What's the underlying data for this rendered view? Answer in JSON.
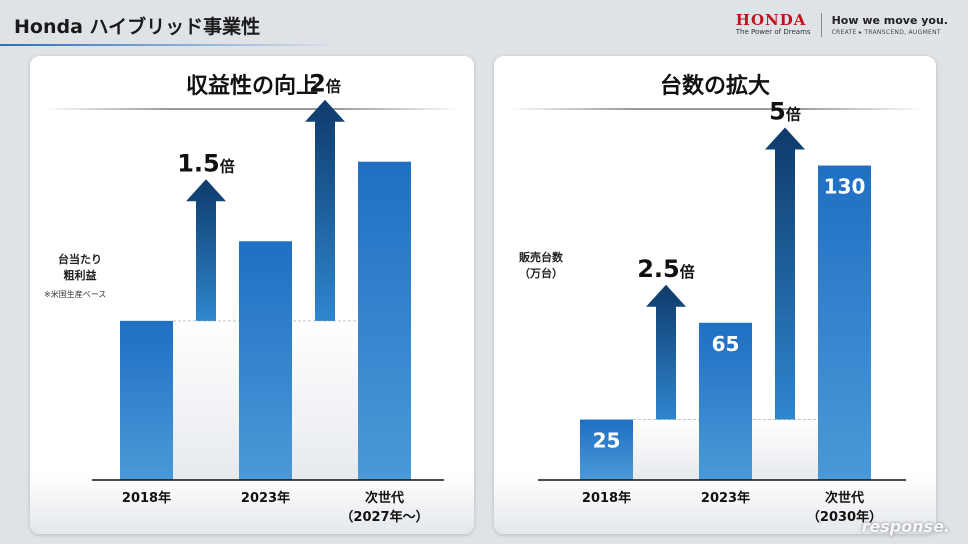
{
  "header": {
    "title": "Honda ハイブリッド事業性",
    "logo_text": "HONDA",
    "logo_sub": "The Power of Dreams",
    "slogan": "How we move you.",
    "slogan_sub": "CREATE ▸ TRANSCEND, AUGMENT"
  },
  "colors": {
    "bar_top": "#1f6fc4",
    "bar_bottom": "#4a9ad8",
    "arrow_top": "#0e3a6a",
    "arrow_bottom": "#2f86cf"
  },
  "left_panel": {
    "title": "収益性の向上",
    "ylabel_line1": "台当たり",
    "ylabel_line2": "粗利益",
    "note": "※米国生産ベース"
  },
  "right_panel": {
    "title": "台数の拡大",
    "ylabel_line1": "販売台数",
    "ylabel_line2": "（万台）"
  },
  "chart_data": [
    {
      "type": "bar",
      "title": "収益性の向上",
      "ylabel": "台当たり 粗利益",
      "categories": [
        [
          "2018年"
        ],
        [
          "2023年"
        ],
        [
          "次世代",
          "（2027年～）"
        ]
      ],
      "values": [
        1,
        1.5,
        2
      ],
      "ylim": [
        0,
        2.35
      ],
      "value_labels": [],
      "arrows": [
        {
          "from": 0,
          "to": 1,
          "number": "1.5",
          "unit": "倍"
        },
        {
          "from": 0,
          "to": 2,
          "number": "2",
          "unit": "倍"
        }
      ]
    },
    {
      "type": "bar",
      "title": "台数の拡大",
      "ylabel": "販売台数（万台）",
      "categories": [
        [
          "2018年"
        ],
        [
          "2023年"
        ],
        [
          "次世代",
          "（2030年）"
        ]
      ],
      "values": [
        25,
        65,
        130
      ],
      "ylim": [
        0,
        148
      ],
      "value_labels": [
        "25",
        "65",
        "130"
      ],
      "arrows": [
        {
          "from": 0,
          "to": 1,
          "number": "2.5",
          "unit": "倍"
        },
        {
          "from": 0,
          "to": 2,
          "number": "5",
          "unit": "倍"
        }
      ]
    }
  ],
  "watermark": "response."
}
